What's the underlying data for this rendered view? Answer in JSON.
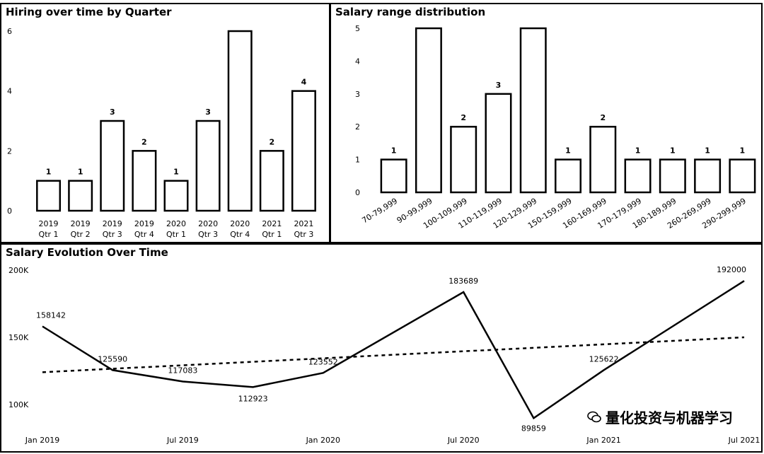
{
  "chart_data": [
    {
      "type": "bar",
      "title": "Hiring over time by Quarter",
      "categories": [
        [
          "2019",
          "Qtr 1"
        ],
        [
          "2019",
          "Qtr 2"
        ],
        [
          "2019",
          "Qtr 3"
        ],
        [
          "2019",
          "Qtr 4"
        ],
        [
          "2020",
          "Qtr 1"
        ],
        [
          "2020",
          "Qtr 3"
        ],
        [
          "2020",
          "Qtr 4"
        ],
        [
          "2021",
          "Qtr 1"
        ],
        [
          "2021",
          "Qtr 3"
        ]
      ],
      "values": [
        1,
        1,
        3,
        2,
        1,
        3,
        6,
        2,
        4
      ],
      "data_labels": [
        "1",
        "1",
        "3",
        "2",
        "1",
        "3",
        "",
        "2",
        "4"
      ],
      "ylim": [
        0,
        6
      ],
      "yticks": [
        0,
        2,
        4,
        6
      ]
    },
    {
      "type": "bar",
      "title": "Salary range distribution",
      "categories": [
        "70-79,999",
        "90-99,999",
        "100-109,999",
        "110-119,999",
        "120-129,999",
        "150-159,999",
        "160-169,999",
        "170-179,999",
        "180-189,999",
        "260-269,999",
        "290-299,999"
      ],
      "values": [
        1,
        5,
        2,
        3,
        5,
        1,
        2,
        1,
        1,
        1,
        1
      ],
      "data_labels": [
        "1",
        "",
        "2",
        "3",
        "",
        "1",
        "2",
        "1",
        "1",
        "1",
        "1"
      ],
      "ylim": [
        0,
        5
      ],
      "yticks": [
        0,
        1,
        2,
        3,
        4,
        5
      ]
    },
    {
      "type": "line",
      "title": "Salary Evolution Over Time",
      "x": [
        "Jan 2019",
        "Apr 2019",
        "Jul 2019",
        "Oct 2019",
        "Jan 2020",
        "Jul 2020",
        "Oct 2020",
        "Jan 2021",
        "Jul 2021"
      ],
      "series": [
        {
          "values": [
            158142,
            125590,
            117083,
            112923,
            123552,
            183689,
            89859,
            125622,
            192000
          ],
          "labels": [
            "158142",
            "125590",
            "117083",
            "112923",
            "123552",
            "183689",
            "89859",
            "125622",
            "192000"
          ]
        }
      ],
      "trend": {
        "style": "dashed",
        "start": 124000,
        "end": 150000
      },
      "ylim": [
        100000,
        200000
      ],
      "yticks": [
        100000,
        150000,
        200000
      ],
      "ytick_labels": [
        "100K",
        "150K",
        "200K"
      ],
      "xticks": [
        "Jan 2019",
        "Jul 2019",
        "Jan 2020",
        "Jul 2020",
        "Jan 2021",
        "Jul 2021"
      ]
    }
  ],
  "watermark": {
    "text": "量化投资与机器学习"
  }
}
